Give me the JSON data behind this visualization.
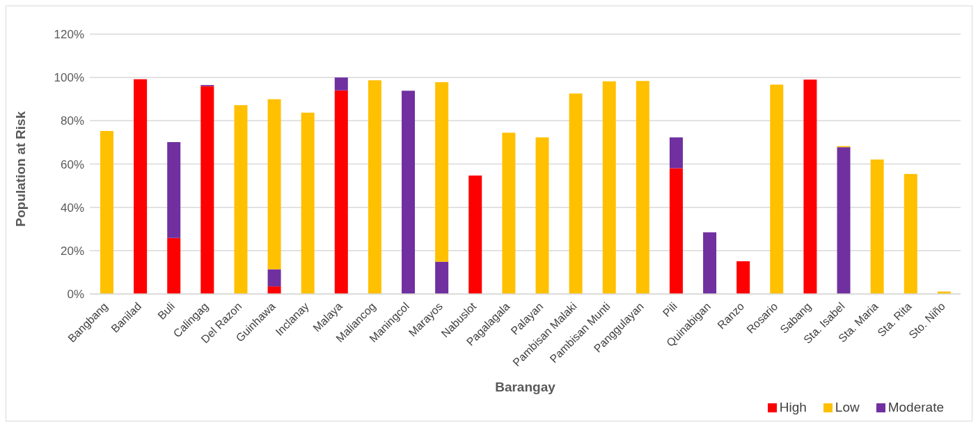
{
  "chart_data": {
    "type": "bar",
    "stacked": true,
    "xlabel": "Barangay",
    "ylabel": "Population at Risk",
    "categories": [
      "Bangbang",
      "Banilad",
      "Buli",
      "Calingag",
      "Del Razon",
      "Guinhawa",
      "Inclanay",
      "Malaya",
      "Maliancog",
      "Maningcol",
      "Marayos",
      "Nabuslot",
      "Pagalagala",
      "Palayan",
      "Pambisan Malaki",
      "Pambisan Munti",
      "Panggulayan",
      "Pili",
      "Quinabigan",
      "Ranzo",
      "Rosario",
      "Sabang",
      "Sta. Isabel",
      "Sta. Maria",
      "Sta. Rita",
      "Sto. Niño"
    ],
    "series": [
      {
        "name": "High",
        "color": "#ff0000",
        "values": [
          null,
          99.2,
          25.8,
          96,
          null,
          3.5,
          null,
          94,
          null,
          null,
          null,
          54.7,
          null,
          null,
          null,
          null,
          null,
          58.1,
          null,
          15.1,
          null,
          99,
          null,
          null,
          null,
          null
        ]
      },
      {
        "name": "Moderate",
        "color": "#7030a0",
        "values": [
          null,
          null,
          44.3,
          0.5,
          null,
          7.9,
          null,
          6,
          null,
          93.9,
          14.9,
          null,
          null,
          null,
          null,
          null,
          null,
          14.2,
          28.5,
          null,
          null,
          null,
          67.8,
          null,
          null,
          null
        ]
      },
      {
        "name": "Low",
        "color": "#ffc000",
        "values": [
          75.3,
          null,
          null,
          null,
          87.2,
          78.5,
          83.7,
          null,
          98.7,
          null,
          82.9,
          null,
          74.5,
          72.3,
          92.6,
          98.2,
          98.4,
          null,
          null,
          null,
          96.7,
          null,
          0.5,
          62.1,
          55.4,
          1.1
        ]
      }
    ],
    "ylim": [
      0,
      120
    ],
    "yticks": [
      {
        "value": 0,
        "label": "0%"
      },
      {
        "value": 20,
        "label": "20%"
      },
      {
        "value": 40,
        "label": "40%"
      },
      {
        "value": 60,
        "label": "60%"
      },
      {
        "value": 80,
        "label": "80%"
      },
      {
        "value": 100,
        "label": "100%"
      },
      {
        "value": 120,
        "label": "120%"
      }
    ],
    "grid": "y",
    "legend": "bottom right"
  }
}
